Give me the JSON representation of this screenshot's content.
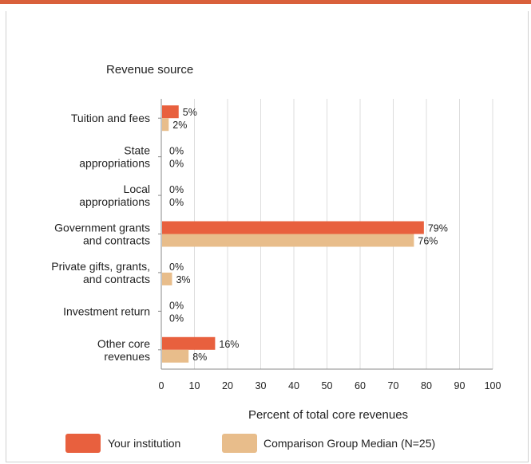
{
  "colors": {
    "top_bar": "#d9603b",
    "your_institution": "#e8603e",
    "comparison": "#e8bd8b",
    "grid": "#dddddd",
    "axis": "#888888"
  },
  "chart_data": {
    "type": "bar",
    "orientation": "horizontal",
    "y_axis_title": "Revenue source",
    "xlabel": "Percent of total core revenues",
    "xlim": [
      0,
      100
    ],
    "xticks": [
      0,
      10,
      20,
      30,
      40,
      50,
      60,
      70,
      80,
      90,
      100
    ],
    "grid": true,
    "legend_position": "bottom",
    "categories": [
      [
        "Tuition and fees"
      ],
      [
        "State",
        "appropriations"
      ],
      [
        "Local",
        "appropriations"
      ],
      [
        "Government grants",
        "and contracts"
      ],
      [
        "Private gifts, grants,",
        "and contracts"
      ],
      [
        "Investment return"
      ],
      [
        "Other core",
        "revenues"
      ]
    ],
    "series": [
      {
        "name": "Your institution",
        "color": "#e8603e",
        "values": [
          5,
          0,
          0,
          79,
          0,
          0,
          16
        ],
        "labels": [
          "5%",
          "0%",
          "0%",
          "79%",
          "0%",
          "0%",
          "16%"
        ]
      },
      {
        "name": "Comparison Group Median (N=25)",
        "color": "#e8bd8b",
        "values": [
          2,
          0,
          0,
          76,
          3,
          0,
          8
        ],
        "labels": [
          "2%",
          "0%",
          "0%",
          "76%",
          "3%",
          "0%",
          "8%"
        ]
      }
    ]
  }
}
